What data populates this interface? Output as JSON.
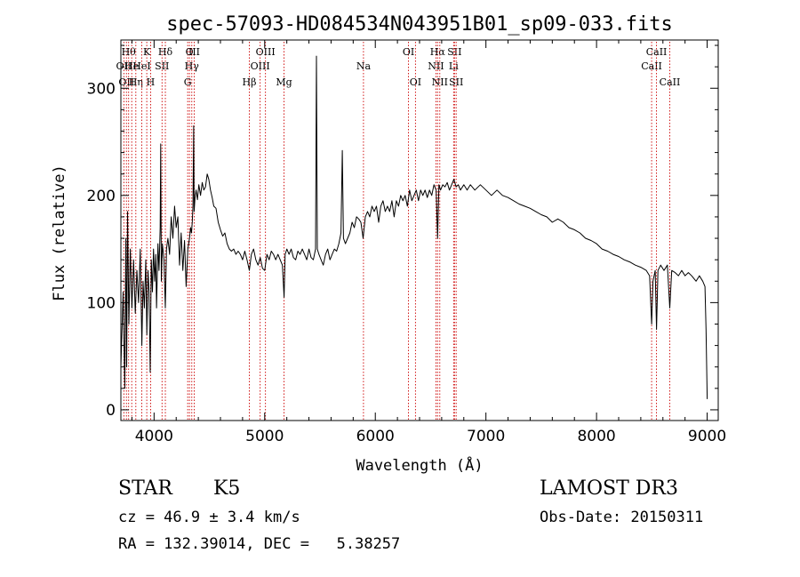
{
  "chart_data": {
    "type": "line",
    "title": "spec-57093-HD084534N043951B01_sp09-033.fits",
    "xlabel": "Wavelength (Å)",
    "ylabel": "Flux (relative)",
    "xlim": [
      3700,
      9100
    ],
    "ylim": [
      -10,
      345
    ],
    "xticks": [
      4000,
      5000,
      6000,
      7000,
      8000,
      9000
    ],
    "yticks": [
      0,
      100,
      200,
      300
    ],
    "grid": false,
    "line_color": "#000000",
    "marker_color": "#cc0000",
    "spectrum": [
      [
        3700,
        40
      ],
      [
        3720,
        110
      ],
      [
        3735,
        20
      ],
      [
        3745,
        160
      ],
      [
        3752,
        40
      ],
      [
        3760,
        185
      ],
      [
        3772,
        80
      ],
      [
        3785,
        150
      ],
      [
        3800,
        95
      ],
      [
        3815,
        140
      ],
      [
        3830,
        90
      ],
      [
        3845,
        130
      ],
      [
        3860,
        100
      ],
      [
        3875,
        150
      ],
      [
        3890,
        60
      ],
      [
        3900,
        120
      ],
      [
        3912,
        95
      ],
      [
        3925,
        140
      ],
      [
        3935,
        70
      ],
      [
        3945,
        130
      ],
      [
        3955,
        110
      ],
      [
        3965,
        35
      ],
      [
        3975,
        140
      ],
      [
        3985,
        110
      ],
      [
        3995,
        150
      ],
      [
        4005,
        120
      ],
      [
        4015,
        145
      ],
      [
        4022,
        95
      ],
      [
        4035,
        155
      ],
      [
        4045,
        130
      ],
      [
        4055,
        170
      ],
      [
        4060,
        248
      ],
      [
        4066,
        120
      ],
      [
        4075,
        155
      ],
      [
        4090,
        140
      ],
      [
        4102,
        95
      ],
      [
        4112,
        150
      ],
      [
        4125,
        160
      ],
      [
        4140,
        145
      ],
      [
        4155,
        180
      ],
      [
        4170,
        160
      ],
      [
        4185,
        190
      ],
      [
        4200,
        170
      ],
      [
        4215,
        180
      ],
      [
        4230,
        135
      ],
      [
        4245,
        165
      ],
      [
        4260,
        130
      ],
      [
        4275,
        158
      ],
      [
        4290,
        115
      ],
      [
        4305,
        150
      ],
      [
        4320,
        160
      ],
      [
        4330,
        170
      ],
      [
        4338,
        165
      ],
      [
        4345,
        175
      ],
      [
        4352,
        190
      ],
      [
        4358,
        265
      ],
      [
        4362,
        185
      ],
      [
        4370,
        198
      ],
      [
        4380,
        205
      ],
      [
        4392,
        196
      ],
      [
        4405,
        210
      ],
      [
        4420,
        200
      ],
      [
        4435,
        212
      ],
      [
        4450,
        205
      ],
      [
        4465,
        208
      ],
      [
        4480,
        220
      ],
      [
        4495,
        215
      ],
      [
        4510,
        205
      ],
      [
        4525,
        198
      ],
      [
        4540,
        190
      ],
      [
        4560,
        188
      ],
      [
        4580,
        175
      ],
      [
        4600,
        168
      ],
      [
        4620,
        162
      ],
      [
        4640,
        165
      ],
      [
        4660,
        155
      ],
      [
        4680,
        150
      ],
      [
        4700,
        148
      ],
      [
        4720,
        150
      ],
      [
        4740,
        145
      ],
      [
        4760,
        148
      ],
      [
        4780,
        145
      ],
      [
        4800,
        140
      ],
      [
        4820,
        148
      ],
      [
        4840,
        140
      ],
      [
        4861,
        130
      ],
      [
        4880,
        145
      ],
      [
        4900,
        150
      ],
      [
        4920,
        140
      ],
      [
        4940,
        135
      ],
      [
        4960,
        142
      ],
      [
        4980,
        132
      ],
      [
        5000,
        130
      ],
      [
        5020,
        145
      ],
      [
        5040,
        140
      ],
      [
        5060,
        148
      ],
      [
        5080,
        145
      ],
      [
        5100,
        140
      ],
      [
        5120,
        145
      ],
      [
        5140,
        140
      ],
      [
        5160,
        135
      ],
      [
        5175,
        105
      ],
      [
        5185,
        145
      ],
      [
        5200,
        150
      ],
      [
        5220,
        145
      ],
      [
        5240,
        150
      ],
      [
        5260,
        142
      ],
      [
        5280,
        140
      ],
      [
        5300,
        148
      ],
      [
        5320,
        145
      ],
      [
        5340,
        150
      ],
      [
        5360,
        145
      ],
      [
        5380,
        140
      ],
      [
        5400,
        150
      ],
      [
        5420,
        142
      ],
      [
        5440,
        140
      ],
      [
        5460,
        150
      ],
      [
        5468,
        330
      ],
      [
        5476,
        150
      ],
      [
        5490,
        145
      ],
      [
        5510,
        140
      ],
      [
        5530,
        135
      ],
      [
        5550,
        145
      ],
      [
        5570,
        150
      ],
      [
        5590,
        140
      ],
      [
        5610,
        145
      ],
      [
        5630,
        150
      ],
      [
        5650,
        148
      ],
      [
        5670,
        155
      ],
      [
        5690,
        165
      ],
      [
        5702,
        242
      ],
      [
        5712,
        160
      ],
      [
        5730,
        155
      ],
      [
        5750,
        160
      ],
      [
        5770,
        165
      ],
      [
        5790,
        175
      ],
      [
        5810,
        170
      ],
      [
        5830,
        180
      ],
      [
        5850,
        178
      ],
      [
        5870,
        175
      ],
      [
        5890,
        160
      ],
      [
        5910,
        180
      ],
      [
        5930,
        185
      ],
      [
        5950,
        180
      ],
      [
        5970,
        190
      ],
      [
        5990,
        185
      ],
      [
        6010,
        190
      ],
      [
        6030,
        175
      ],
      [
        6050,
        190
      ],
      [
        6070,
        195
      ],
      [
        6090,
        185
      ],
      [
        6110,
        190
      ],
      [
        6130,
        185
      ],
      [
        6150,
        195
      ],
      [
        6170,
        180
      ],
      [
        6190,
        195
      ],
      [
        6210,
        190
      ],
      [
        6230,
        200
      ],
      [
        6250,
        195
      ],
      [
        6270,
        200
      ],
      [
        6290,
        190
      ],
      [
        6310,
        205
      ],
      [
        6330,
        195
      ],
      [
        6350,
        200
      ],
      [
        6370,
        205
      ],
      [
        6390,
        195
      ],
      [
        6410,
        205
      ],
      [
        6430,
        200
      ],
      [
        6450,
        205
      ],
      [
        6470,
        198
      ],
      [
        6490,
        205
      ],
      [
        6510,
        200
      ],
      [
        6530,
        210
      ],
      [
        6550,
        205
      ],
      [
        6563,
        160
      ],
      [
        6575,
        210
      ],
      [
        6590,
        205
      ],
      [
        6610,
        210
      ],
      [
        6630,
        208
      ],
      [
        6650,
        212
      ],
      [
        6670,
        205
      ],
      [
        6690,
        210
      ],
      [
        6710,
        215
      ],
      [
        6730,
        208
      ],
      [
        6750,
        210
      ],
      [
        6770,
        205
      ],
      [
        6800,
        210
      ],
      [
        6830,
        205
      ],
      [
        6860,
        210
      ],
      [
        6900,
        205
      ],
      [
        6950,
        210
      ],
      [
        7000,
        205
      ],
      [
        7050,
        200
      ],
      [
        7100,
        205
      ],
      [
        7150,
        200
      ],
      [
        7200,
        198
      ],
      [
        7250,
        195
      ],
      [
        7300,
        192
      ],
      [
        7350,
        190
      ],
      [
        7400,
        188
      ],
      [
        7450,
        185
      ],
      [
        7500,
        182
      ],
      [
        7550,
        180
      ],
      [
        7600,
        175
      ],
      [
        7650,
        178
      ],
      [
        7700,
        175
      ],
      [
        7750,
        170
      ],
      [
        7800,
        168
      ],
      [
        7850,
        165
      ],
      [
        7900,
        160
      ],
      [
        7950,
        158
      ],
      [
        8000,
        155
      ],
      [
        8050,
        150
      ],
      [
        8100,
        148
      ],
      [
        8150,
        145
      ],
      [
        8200,
        143
      ],
      [
        8250,
        140
      ],
      [
        8300,
        138
      ],
      [
        8350,
        135
      ],
      [
        8400,
        133
      ],
      [
        8450,
        130
      ],
      [
        8480,
        125
      ],
      [
        8498,
        80
      ],
      [
        8510,
        120
      ],
      [
        8530,
        130
      ],
      [
        8542,
        75
      ],
      [
        8555,
        130
      ],
      [
        8580,
        135
      ],
      [
        8610,
        130
      ],
      [
        8640,
        135
      ],
      [
        8662,
        95
      ],
      [
        8680,
        130
      ],
      [
        8710,
        128
      ],
      [
        8740,
        125
      ],
      [
        8770,
        130
      ],
      [
        8800,
        125
      ],
      [
        8830,
        128
      ],
      [
        8860,
        125
      ],
      [
        8900,
        120
      ],
      [
        8930,
        125
      ],
      [
        8960,
        120
      ],
      [
        8980,
        115
      ],
      [
        8990,
        75
      ],
      [
        9000,
        10
      ]
    ],
    "line_markers": [
      {
        "wavelength": 3727,
        "label": "OII",
        "row": 2
      },
      {
        "wavelength": 3750,
        "label": "OII",
        "row": 3
      },
      {
        "wavelength": 3770,
        "label": "Hθ",
        "row": 1
      },
      {
        "wavelength": 3798,
        "label": "He",
        "row": 2
      },
      {
        "wavelength": 3835,
        "label": "Hη",
        "row": 3
      },
      {
        "wavelength": 3889,
        "label": "HeI",
        "row": 2
      },
      {
        "wavelength": 3934,
        "label": "K",
        "row": 1
      },
      {
        "wavelength": 3969,
        "label": "H",
        "row": 3
      },
      {
        "wavelength": 4072,
        "label": "SII",
        "row": 2
      },
      {
        "wavelength": 4102,
        "label": "Hδ",
        "row": 1
      },
      {
        "wavelength": 4304,
        "label": "G",
        "row": 3
      },
      {
        "wavelength": 4320,
        "label": "O",
        "row": 1
      },
      {
        "wavelength": 4341,
        "label": "Hγ",
        "row": 2
      },
      {
        "wavelength": 4363,
        "label": "III",
        "row": 1
      },
      {
        "wavelength": 4861,
        "label": "Hβ",
        "row": 3
      },
      {
        "wavelength": 4959,
        "label": "OIII",
        "row": 2
      },
      {
        "wavelength": 5007,
        "label": "OIII",
        "row": 1
      },
      {
        "wavelength": 5175,
        "label": "Mg",
        "row": 3
      },
      {
        "wavelength": 5893,
        "label": "Na",
        "row": 2
      },
      {
        "wavelength": 6300,
        "label": "OI",
        "row": 1
      },
      {
        "wavelength": 6363,
        "label": "OI",
        "row": 3
      },
      {
        "wavelength": 6548,
        "label": "NII",
        "row": 2
      },
      {
        "wavelength": 6563,
        "label": "Hα",
        "row": 1
      },
      {
        "wavelength": 6583,
        "label": "NII",
        "row": 3
      },
      {
        "wavelength": 6708,
        "label": "Li",
        "row": 2
      },
      {
        "wavelength": 6716,
        "label": "SII",
        "row": 1
      },
      {
        "wavelength": 6731,
        "label": "SII",
        "row": 3
      },
      {
        "wavelength": 8498,
        "label": "CaII",
        "row": 2
      },
      {
        "wavelength": 8542,
        "label": "CaII",
        "row": 1
      },
      {
        "wavelength": 8662,
        "label": "CaII",
        "row": 3
      }
    ]
  },
  "info": {
    "object_class": "STAR",
    "subclass": "K5",
    "survey": "LAMOST DR3",
    "redshift": "cz = 46.9 ± 3.4 km/s",
    "obs_date": "Obs-Date: 20150311",
    "coords": "RA = 132.39014, DEC =   5.38257"
  }
}
